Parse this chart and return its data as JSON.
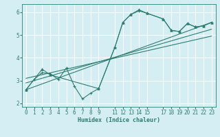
{
  "title": "",
  "xlabel": "Humidex (Indice chaleur)",
  "ylabel": "",
  "bg_color": "#d5eef3",
  "grid_color": "#ffffff",
  "line_color": "#2e7d70",
  "xlim": [
    -0.5,
    23.5
  ],
  "ylim": [
    1.85,
    6.35
  ],
  "xticks": [
    0,
    1,
    2,
    3,
    4,
    5,
    6,
    7,
    8,
    9,
    11,
    12,
    13,
    14,
    15,
    17,
    18,
    19,
    20,
    21,
    22,
    23
  ],
  "yticks": [
    2,
    3,
    4,
    5,
    6
  ],
  "series": [
    {
      "x": [
        0,
        1,
        2,
        3,
        4,
        5,
        6,
        7,
        8,
        9,
        11,
        12,
        13,
        14,
        15,
        17,
        18,
        19,
        20,
        21,
        22,
        23
      ],
      "y": [
        2.6,
        3.05,
        3.35,
        3.3,
        3.05,
        3.55,
        2.75,
        2.2,
        2.45,
        2.65,
        4.45,
        5.55,
        5.9,
        6.05,
        5.95,
        5.7,
        5.2,
        5.15,
        5.5,
        5.35,
        5.4,
        5.55
      ],
      "marker": "+"
    },
    {
      "x": [
        0,
        2,
        3,
        9,
        11,
        12,
        13,
        14,
        15,
        17,
        18,
        19,
        20,
        21,
        22,
        23
      ],
      "y": [
        2.6,
        3.5,
        3.25,
        2.65,
        4.45,
        5.55,
        5.9,
        6.1,
        5.95,
        5.7,
        5.2,
        5.15,
        5.5,
        5.35,
        5.4,
        5.55
      ],
      "marker": "^"
    },
    {
      "x": [
        0,
        23
      ],
      "y": [
        2.6,
        5.55
      ],
      "marker": null
    },
    {
      "x": [
        0,
        23
      ],
      "y": [
        2.9,
        5.25
      ],
      "marker": null
    },
    {
      "x": [
        0,
        23
      ],
      "y": [
        3.1,
        4.95
      ],
      "marker": null
    }
  ]
}
